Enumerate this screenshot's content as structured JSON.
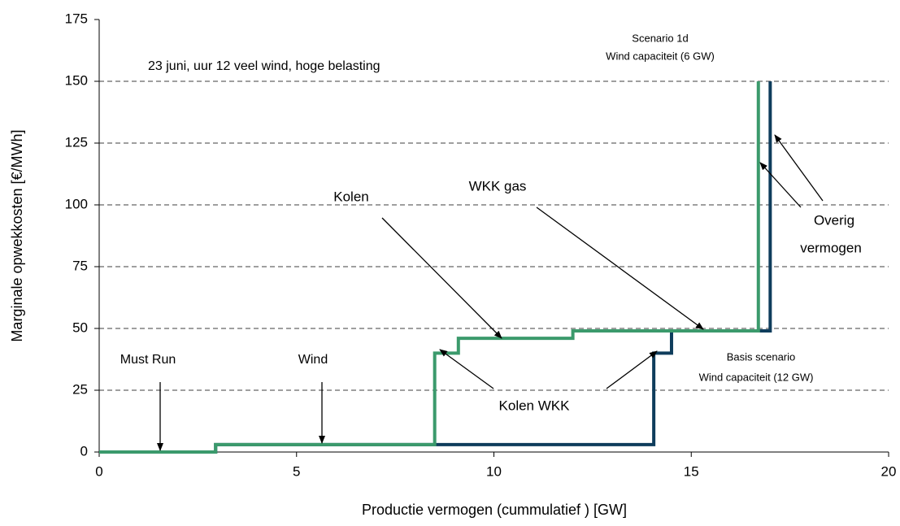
{
  "chart_data": {
    "type": "line",
    "xlabel": "Productie vermogen (cummulatief ) [GW]",
    "ylabel": "Marginale opwekkosten [€/MWh]",
    "xlim": [
      0,
      20
    ],
    "xticks": [
      0,
      5,
      10,
      15,
      20
    ],
    "ylim": [
      0,
      175
    ],
    "yticks": [
      0,
      25,
      50,
      75,
      100,
      125,
      150,
      175
    ],
    "grid": true,
    "series": [
      {
        "color": "#0f3d5c",
        "x": [
          0,
          2.95,
          2.95,
          14.05,
          14.05,
          14.5,
          14.5,
          17,
          17
        ],
        "values": [
          0,
          0,
          3,
          3,
          40,
          40,
          49,
          49,
          150
        ]
      },
      {
        "color": "#3b9a6c",
        "x": [
          0,
          2.95,
          2.95,
          8.5,
          8.5,
          9.1,
          9.1,
          12,
          12,
          16.7,
          16.7
        ],
        "values": [
          0,
          0,
          3,
          3,
          40,
          40,
          46,
          46,
          49,
          49,
          150
        ]
      }
    ],
    "annotations": [
      "23 juni, uur 12   veel wind, hoge belasting",
      "Scenario 1d",
      "Wind capaciteit (6 GW)",
      "Kolen",
      "WKK gas",
      "Overig",
      "vermogen",
      "Must Run",
      "Wind",
      "Basis scenario",
      "Wind capaciteit (12 GW)",
      "Kolen  WKK"
    ]
  }
}
